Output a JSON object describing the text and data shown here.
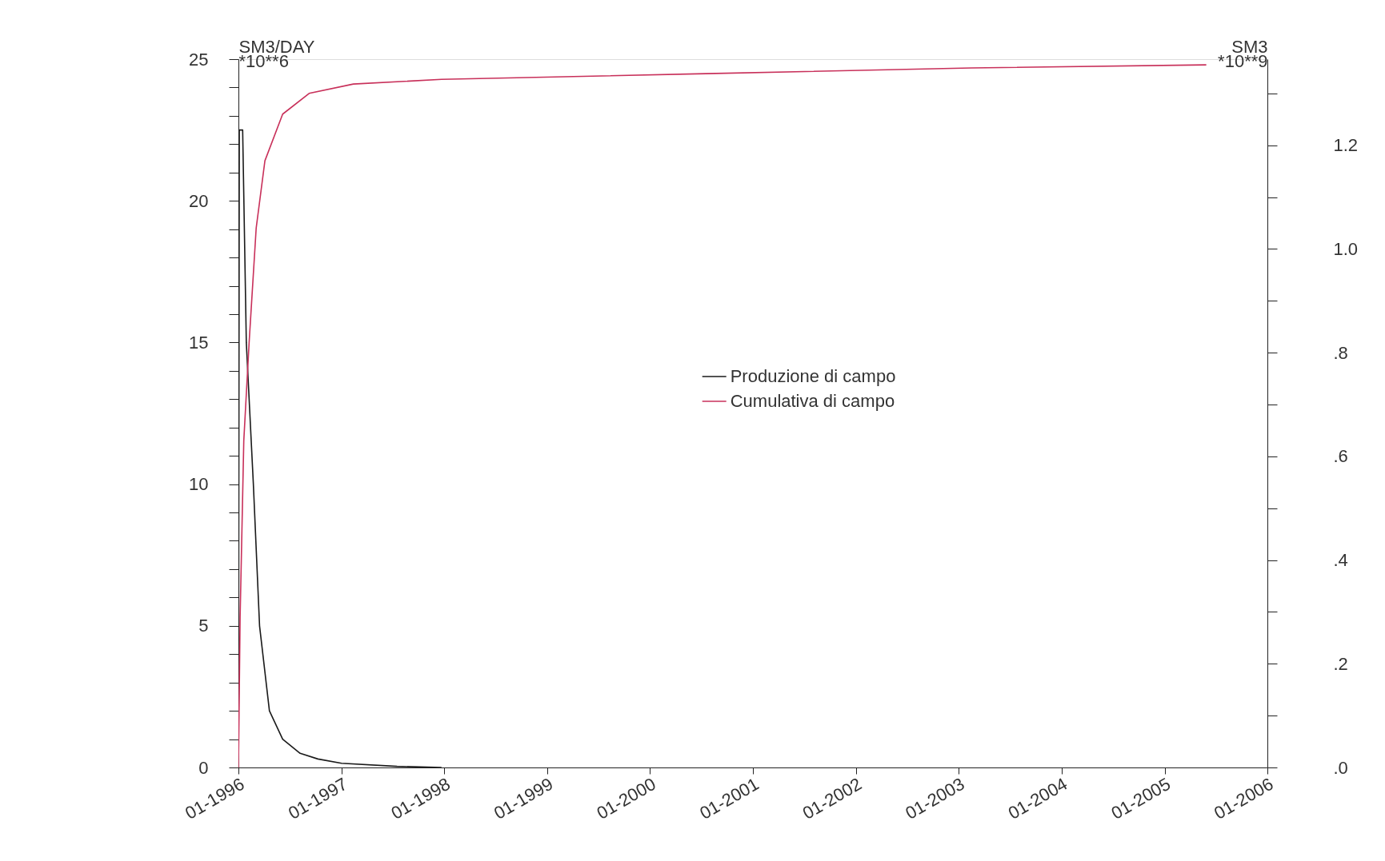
{
  "chart_data": {
    "type": "line",
    "ylabel": "SM3/DAY\n*10**6",
    "y2label": "SM3\n*10**9",
    "xlim": [
      "1996-01-01",
      "2006-01-01"
    ],
    "xticks": [
      {
        "value": "1996-01-01",
        "label": "01-1996"
      },
      {
        "value": "1997-01-01",
        "label": "01-1997"
      },
      {
        "value": "1998-01-01",
        "label": "01-1998"
      },
      {
        "value": "1999-01-01",
        "label": "01-1999"
      },
      {
        "value": "2000-01-01",
        "label": "01-2000"
      },
      {
        "value": "2001-01-01",
        "label": "01-2001"
      },
      {
        "value": "2002-01-01",
        "label": "01-2002"
      },
      {
        "value": "2003-01-01",
        "label": "01-2003"
      },
      {
        "value": "2004-01-01",
        "label": "01-2004"
      },
      {
        "value": "2005-01-01",
        "label": "01-2005"
      },
      {
        "value": "2006-01-01",
        "label": "01-2006"
      }
    ],
    "ylim": [
      0,
      25
    ],
    "yticks": [
      {
        "value": 0,
        "label": "0"
      },
      {
        "value": 1,
        "label": null
      },
      {
        "value": 2,
        "label": null
      },
      {
        "value": 3,
        "label": null
      },
      {
        "value": 4,
        "label": null
      },
      {
        "value": 5,
        "label": "5"
      },
      {
        "value": 6,
        "label": null
      },
      {
        "value": 7,
        "label": null
      },
      {
        "value": 8,
        "label": null
      },
      {
        "value": 9,
        "label": null
      },
      {
        "value": 10,
        "label": "10"
      },
      {
        "value": 11,
        "label": null
      },
      {
        "value": 12,
        "label": null
      },
      {
        "value": 13,
        "label": null
      },
      {
        "value": 14,
        "label": null
      },
      {
        "value": 15,
        "label": "15"
      },
      {
        "value": 16,
        "label": null
      },
      {
        "value": 17,
        "label": null
      },
      {
        "value": 18,
        "label": null
      },
      {
        "value": 19,
        "label": null
      },
      {
        "value": 20,
        "label": "20"
      },
      {
        "value": 21,
        "label": null
      },
      {
        "value": 22,
        "label": null
      },
      {
        "value": 23,
        "label": null
      },
      {
        "value": 24,
        "label": null
      },
      {
        "value": 25,
        "label": "25"
      }
    ],
    "y2lim": [
      0,
      1.366
    ],
    "y2ticks": [
      {
        "value": 0,
        "label": ".0"
      },
      {
        "value": 0.1,
        "label": null
      },
      {
        "value": 0.2,
        "label": ".2"
      },
      {
        "value": 0.3,
        "label": null
      },
      {
        "value": 0.4,
        "label": ".4"
      },
      {
        "value": 0.5,
        "label": null
      },
      {
        "value": 0.6,
        "label": ".6"
      },
      {
        "value": 0.7,
        "label": null
      },
      {
        "value": 0.8,
        "label": ".8"
      },
      {
        "value": 0.9,
        "label": null
      },
      {
        "value": 1.0,
        "label": "1.0"
      },
      {
        "value": 1.1,
        "label": null
      },
      {
        "value": 1.2,
        "label": "1.2"
      },
      {
        "value": 1.3,
        "label": null
      }
    ],
    "grid": false,
    "legend": "center",
    "series": [
      {
        "name": "Produzione di campo",
        "color": "#1a1a1a",
        "x": [
          "1996-01-01",
          "1996-01-04",
          "1996-01-16",
          "1996-01-29",
          "1996-02-23",
          "1996-03-16",
          "1996-04-20",
          "1996-06-06",
          "1996-08-07",
          "1996-10-09",
          "1997-01-01",
          "1997-07-17",
          "1997-12-22"
        ],
        "values": [
          0,
          22.5,
          22.5,
          15,
          10,
          5,
          2,
          1,
          0.5,
          0.3,
          0.15,
          0.04,
          0
        ]
      },
      {
        "name": "Cumulativa di campo",
        "color": "#c8305a",
        "axis": "y2",
        "x": [
          "1996-01-01",
          "1996-01-07",
          "1996-01-20",
          "1996-02-08",
          "1996-03-04",
          "1996-04-04",
          "1996-06-06",
          "1996-09-08",
          "1997-02-12",
          "1997-12-22",
          "2000-07-18",
          "2003-02-14",
          "2005-05-29"
        ],
        "values": [
          0,
          0.29,
          0.63,
          0.82,
          1.04,
          1.17,
          1.26,
          1.3,
          1.318,
          1.327,
          1.338,
          1.349,
          1.355
        ]
      }
    ]
  }
}
